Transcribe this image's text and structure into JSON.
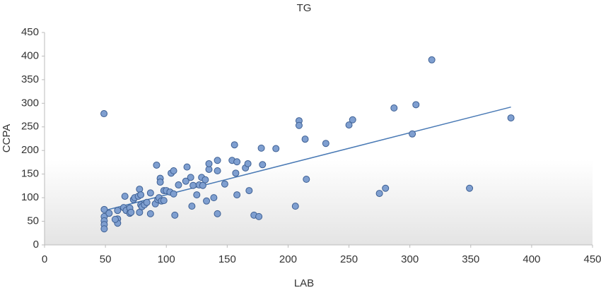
{
  "chart_data": {
    "type": "scatter",
    "title": "TG",
    "x_label": "LAB",
    "y_label": "CCPA",
    "x": [
      48.8,
      49,
      49,
      49,
      49,
      49,
      53,
      60,
      60,
      60,
      58,
      66,
      65,
      67,
      70,
      70,
      71,
      73,
      74,
      77,
      78,
      79,
      79,
      78,
      80,
      82,
      84,
      87,
      87,
      91,
      92,
      93,
      94,
      95,
      95,
      96,
      98,
      98,
      100,
      103,
      104,
      106,
      106,
      107,
      110,
      116,
      117,
      120,
      121,
      122,
      125,
      127,
      129,
      130,
      132,
      133,
      135,
      135,
      139,
      142,
      142,
      142,
      148,
      154,
      156,
      157,
      158,
      158,
      165,
      167,
      168,
      172,
      176,
      178,
      179,
      190,
      206,
      209,
      209,
      214,
      215,
      231,
      250,
      253,
      275,
      280,
      287,
      302,
      305,
      318,
      349,
      383
    ],
    "y": [
      278,
      75,
      60,
      51,
      43,
      34,
      67,
      73,
      55,
      46,
      54,
      103,
      79,
      73,
      78,
      67,
      69,
      96,
      100,
      103,
      118,
      106,
      85,
      69,
      81,
      85,
      90,
      110,
      66,
      87,
      169,
      96,
      100,
      141,
      133,
      93,
      94,
      115,
      115,
      112,
      152,
      157,
      108,
      63,
      127,
      135,
      165,
      143,
      82,
      126,
      106,
      127,
      143,
      126,
      138,
      93,
      160,
      172,
      100,
      179,
      157,
      66,
      129,
      179,
      212,
      152,
      176,
      106,
      163,
      172,
      115,
      63,
      60,
      205,
      170,
      204,
      82,
      263,
      253,
      224,
      139,
      215,
      254,
      265,
      109,
      120,
      290,
      235,
      297,
      392,
      120,
      269
    ],
    "color": "#7f9fd0",
    "trendline": {
      "x": [
        48,
        383
      ],
      "y": [
        72,
        292
      ],
      "color": "#4a7ab5"
    },
    "xlim": [
      0,
      450
    ],
    "xticks": [
      0,
      50,
      100,
      150,
      200,
      250,
      300,
      350,
      400,
      450
    ],
    "ylim": [
      0,
      450
    ],
    "yticks": [
      0,
      50,
      100,
      150,
      200,
      250,
      300,
      350,
      400,
      450
    ]
  }
}
